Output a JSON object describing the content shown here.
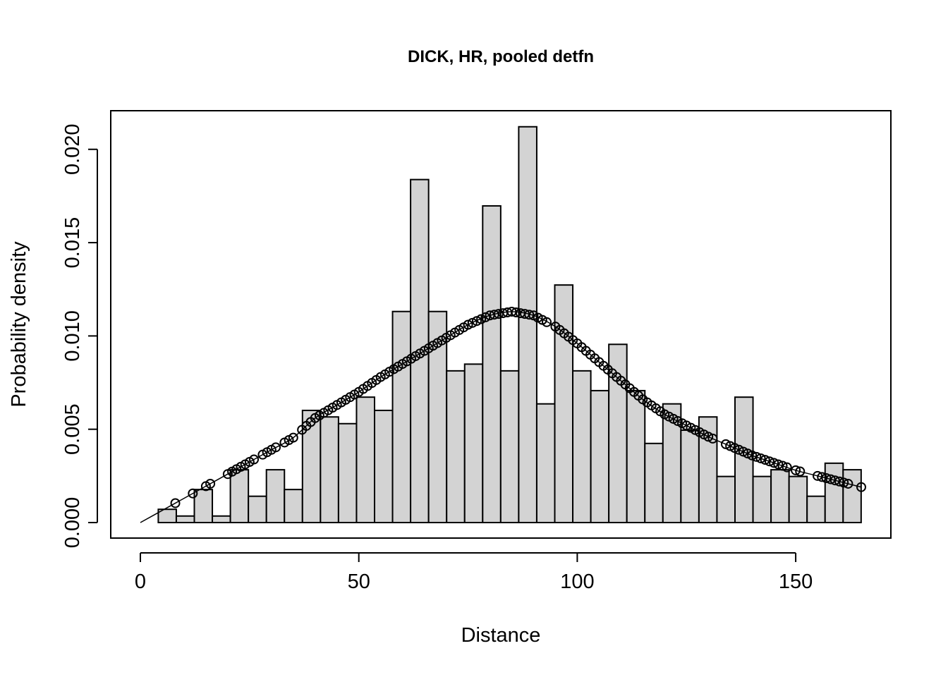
{
  "chart_data": {
    "type": "histogram",
    "title": "DICK, HR, pooled detfn",
    "xlabel": "Distance",
    "ylabel": "Probability density",
    "xlim": [
      0,
      165
    ],
    "ylim": [
      0,
      0.0212
    ],
    "x_ticks": [
      {
        "value": 0,
        "label": "0"
      },
      {
        "value": 50,
        "label": "50"
      },
      {
        "value": 100,
        "label": "100"
      },
      {
        "value": 150,
        "label": "150"
      }
    ],
    "y_ticks": [
      {
        "value": 0,
        "label": "0.000"
      },
      {
        "value": 0.005,
        "label": "0.005"
      },
      {
        "value": 0.01,
        "label": "0.010"
      },
      {
        "value": 0.015,
        "label": "0.015"
      },
      {
        "value": 0.02,
        "label": "0.020"
      }
    ],
    "bins": {
      "start": 4.1,
      "width": 4.125,
      "densities": [
        0.00071,
        0.00035,
        0.00177,
        0.00035,
        0.00283,
        0.00141,
        0.00283,
        0.00177,
        0.00601,
        0.00566,
        0.0053,
        0.00672,
        0.00601,
        0.01131,
        0.01838,
        0.01131,
        0.00813,
        0.00849,
        0.01697,
        0.00813,
        0.02121,
        0.00636,
        0.01273,
        0.00813,
        0.00707,
        0.00955,
        0.00707,
        0.00424,
        0.00636,
        0.00495,
        0.00566,
        0.00247,
        0.00672,
        0.00247,
        0.00283,
        0.00247,
        0.00141,
        0.00318,
        0.00283
      ]
    },
    "curve": {
      "x": [
        0,
        5,
        10,
        15,
        20,
        25,
        30,
        35,
        40,
        45,
        50,
        55,
        60,
        65,
        70,
        75,
        80,
        85,
        90,
        95,
        100,
        105,
        110,
        115,
        120,
        125,
        130,
        135,
        140,
        145,
        150,
        155,
        160,
        165
      ],
      "y": [
        0,
        0.00065,
        0.0013,
        0.00195,
        0.0026,
        0.00325,
        0.0039,
        0.00455,
        0.0056,
        0.0063,
        0.007,
        0.0078,
        0.0085,
        0.0092,
        0.0099,
        0.0106,
        0.0111,
        0.0113,
        0.0111,
        0.0105,
        0.0096,
        0.0086,
        0.0076,
        0.0066,
        0.0058,
        0.0052,
        0.0046,
        0.0041,
        0.0036,
        0.0032,
        0.0028,
        0.0025,
        0.0022,
        0.0019
      ]
    },
    "points_x": [
      8,
      12,
      15,
      16,
      20,
      21,
      22,
      23,
      24,
      25,
      26,
      28,
      29,
      30,
      31,
      33,
      34,
      35,
      37,
      38,
      39,
      40,
      41,
      42,
      43,
      44,
      45,
      46,
      47,
      48,
      49,
      50,
      51,
      52,
      53,
      54,
      55,
      56,
      57,
      58,
      59,
      60,
      61,
      62,
      63,
      64,
      65,
      66,
      67,
      68,
      69,
      70,
      71,
      72,
      73,
      74,
      75,
      76,
      77,
      78,
      79,
      80,
      81,
      82,
      83,
      84,
      85,
      86,
      87,
      88,
      89,
      90,
      91,
      92,
      93,
      95,
      96,
      97,
      98,
      99,
      100,
      101,
      102,
      103,
      104,
      105,
      106,
      107,
      108,
      109,
      110,
      111,
      112,
      113,
      114,
      115,
      116,
      117,
      118,
      119,
      120,
      121,
      122,
      123,
      124,
      125,
      126,
      127,
      128,
      129,
      130,
      131,
      134,
      135,
      136,
      137,
      138,
      139,
      140,
      141,
      142,
      143,
      144,
      145,
      146,
      147,
      148,
      150,
      151,
      155,
      156,
      157,
      158,
      159,
      160,
      161,
      162,
      165
    ]
  }
}
